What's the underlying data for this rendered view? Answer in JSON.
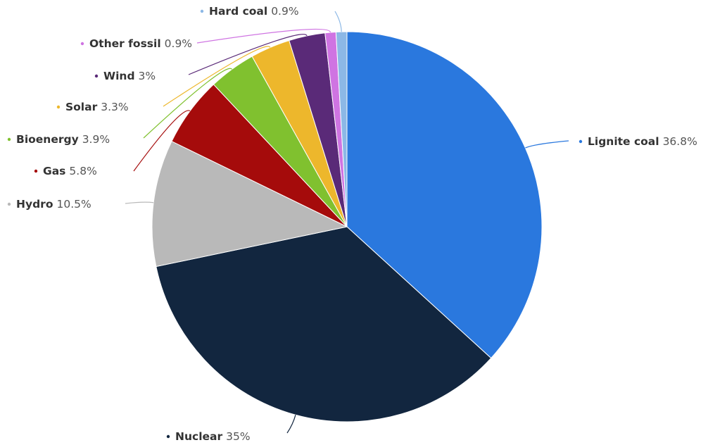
{
  "chart_data": {
    "type": "pie",
    "title": "",
    "legend": "none",
    "slices": [
      {
        "label": "Lignite coal",
        "value": 36.8,
        "display": "36.8%",
        "color": "#2a78de"
      },
      {
        "label": "Nuclear",
        "value": 35,
        "display": "35%",
        "color": "#12263f"
      },
      {
        "label": "Hydro",
        "value": 10.5,
        "display": "10.5%",
        "color": "#b9b9b9"
      },
      {
        "label": "Gas",
        "value": 5.8,
        "display": "5.8%",
        "color": "#a50b0b"
      },
      {
        "label": "Bioenergy",
        "value": 3.9,
        "display": "3.9%",
        "color": "#80c12f"
      },
      {
        "label": "Solar",
        "value": 3.3,
        "display": "3.3%",
        "color": "#edb72c"
      },
      {
        "label": "Wind",
        "value": 3,
        "display": "3%",
        "color": "#5a2a78"
      },
      {
        "label": "Other fossil",
        "value": 0.9,
        "display": "0.9%",
        "color": "#cf74e2"
      },
      {
        "label": "Hard coal",
        "value": 0.9,
        "display": "0.9%",
        "color": "#8cb8e6"
      }
    ]
  }
}
